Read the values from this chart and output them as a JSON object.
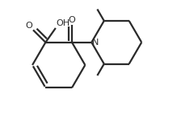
{
  "bg_color": "#ffffff",
  "line_color": "#2a2a2a",
  "line_width": 1.6,
  "font_size": 8.0,
  "figsize": [
    2.19,
    1.52
  ],
  "dpi": 100,
  "xlim": [
    0.0,
    1.0
  ],
  "ylim": [
    0.05,
    0.95
  ]
}
